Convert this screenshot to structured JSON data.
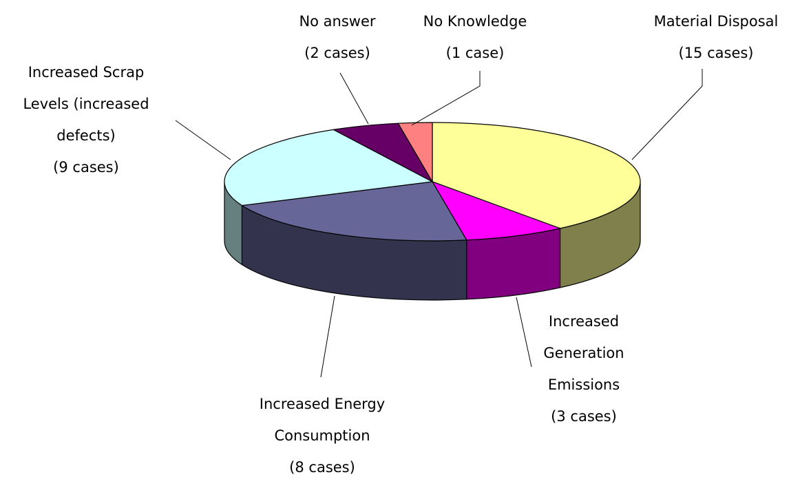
{
  "chart_data": {
    "type": "pie",
    "categories": [
      "Material Disposal",
      "Increased Generation Emissions",
      "Increased Energy Consumption",
      "Increased Scrap Levels (increased defects)",
      "No answer",
      "No Knowledge"
    ],
    "values": [
      15,
      3,
      8,
      9,
      2,
      1
    ],
    "value_labels": [
      "(15 cases)",
      "(3 cases)",
      "(8 cases)",
      "(9 cases)",
      "(2 cases)",
      "(1 case)"
    ],
    "colors": [
      "#ffff99",
      "#ff00ff",
      "#666699",
      "#ccffff",
      "#660066",
      "#ff8080"
    ]
  }
}
